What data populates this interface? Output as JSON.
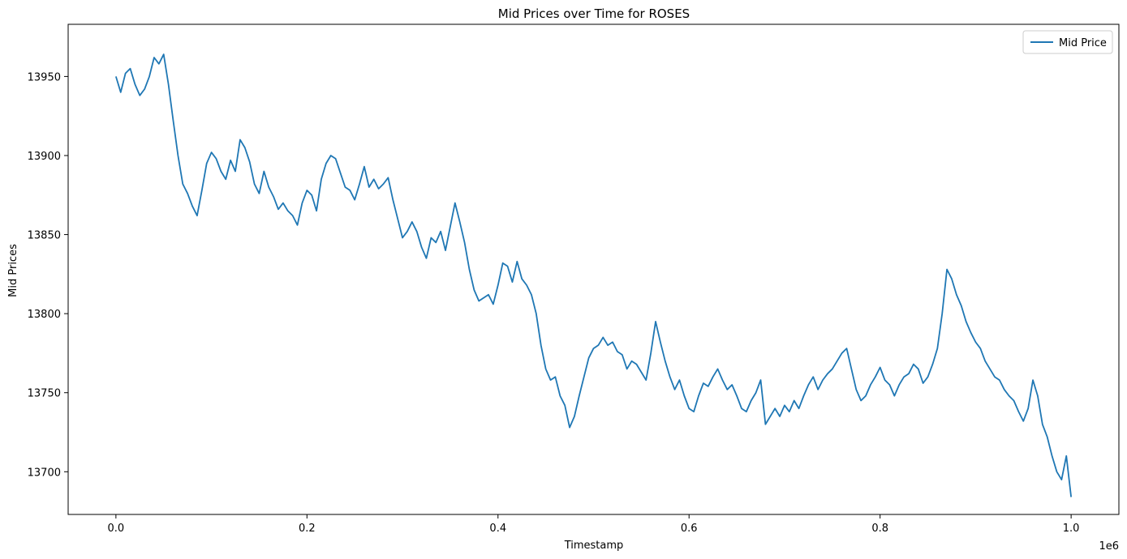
{
  "chart_data": {
    "type": "line",
    "title": "Mid Prices over Time for ROSES",
    "xlabel": "Timestamp",
    "ylabel": "Mid Prices",
    "x_offset_label": "1e6",
    "xlim": [
      -0.05,
      1.05
    ],
    "ylim": [
      13673,
      13983
    ],
    "x_ticks": [
      0.0,
      0.2,
      0.4,
      0.6,
      0.8,
      1.0
    ],
    "x_tick_labels": [
      "0.0",
      "0.2",
      "0.4",
      "0.6",
      "0.8",
      "1.0"
    ],
    "y_ticks": [
      13700,
      13750,
      13800,
      13850,
      13900,
      13950
    ],
    "y_tick_labels": [
      "13700",
      "13750",
      "13800",
      "13850",
      "13900",
      "13950"
    ],
    "grid": false,
    "legend": {
      "position": "top-right",
      "entries": [
        "Mid Price"
      ]
    },
    "colors": {
      "series": "#1f77b4"
    },
    "series": [
      {
        "name": "Mid Price",
        "x": [
          0.0,
          0.005,
          0.01,
          0.015,
          0.02,
          0.025,
          0.03,
          0.035,
          0.04,
          0.045,
          0.05,
          0.055,
          0.06,
          0.065,
          0.07,
          0.075,
          0.08,
          0.085,
          0.09,
          0.095,
          0.1,
          0.105,
          0.11,
          0.115,
          0.12,
          0.125,
          0.13,
          0.135,
          0.14,
          0.145,
          0.15,
          0.155,
          0.16,
          0.165,
          0.17,
          0.175,
          0.18,
          0.185,
          0.19,
          0.195,
          0.2,
          0.205,
          0.21,
          0.215,
          0.22,
          0.225,
          0.23,
          0.235,
          0.24,
          0.245,
          0.25,
          0.255,
          0.26,
          0.265,
          0.27,
          0.275,
          0.28,
          0.285,
          0.29,
          0.295,
          0.3,
          0.305,
          0.31,
          0.315,
          0.32,
          0.325,
          0.33,
          0.335,
          0.34,
          0.345,
          0.35,
          0.355,
          0.36,
          0.365,
          0.37,
          0.375,
          0.38,
          0.385,
          0.39,
          0.395,
          0.4,
          0.405,
          0.41,
          0.415,
          0.42,
          0.425,
          0.43,
          0.435,
          0.44,
          0.445,
          0.45,
          0.455,
          0.46,
          0.465,
          0.47,
          0.475,
          0.48,
          0.485,
          0.49,
          0.495,
          0.5,
          0.505,
          0.51,
          0.515,
          0.52,
          0.525,
          0.53,
          0.535,
          0.54,
          0.545,
          0.55,
          0.555,
          0.56,
          0.565,
          0.57,
          0.575,
          0.58,
          0.585,
          0.59,
          0.595,
          0.6,
          0.605,
          0.61,
          0.615,
          0.62,
          0.625,
          0.63,
          0.635,
          0.64,
          0.645,
          0.65,
          0.655,
          0.66,
          0.665,
          0.67,
          0.675,
          0.68,
          0.685,
          0.69,
          0.695,
          0.7,
          0.705,
          0.71,
          0.715,
          0.72,
          0.725,
          0.73,
          0.735,
          0.74,
          0.745,
          0.75,
          0.755,
          0.76,
          0.765,
          0.77,
          0.775,
          0.78,
          0.785,
          0.79,
          0.795,
          0.8,
          0.805,
          0.81,
          0.815,
          0.82,
          0.825,
          0.83,
          0.835,
          0.84,
          0.845,
          0.85,
          0.855,
          0.86,
          0.865,
          0.87,
          0.875,
          0.88,
          0.885,
          0.89,
          0.895,
          0.9,
          0.905,
          0.91,
          0.915,
          0.92,
          0.925,
          0.93,
          0.935,
          0.94,
          0.945,
          0.95,
          0.955,
          0.96,
          0.965,
          0.97,
          0.975,
          0.98,
          0.985,
          0.99,
          0.995,
          1.0
        ],
        "values": [
          13950,
          13940,
          13952,
          13955,
          13945,
          13938,
          13942,
          13950,
          13962,
          13958,
          13964,
          13945,
          13922,
          13900,
          13882,
          13876,
          13868,
          13862,
          13878,
          13895,
          13902,
          13898,
          13890,
          13885,
          13897,
          13890,
          13910,
          13905,
          13896,
          13882,
          13876,
          13890,
          13880,
          13874,
          13866,
          13870,
          13865,
          13862,
          13856,
          13870,
          13878,
          13875,
          13865,
          13885,
          13895,
          13900,
          13898,
          13889,
          13880,
          13878,
          13872,
          13882,
          13893,
          13880,
          13885,
          13879,
          13882,
          13886,
          13872,
          13860,
          13848,
          13852,
          13858,
          13852,
          13842,
          13835,
          13848,
          13845,
          13852,
          13840,
          13855,
          13870,
          13858,
          13845,
          13828,
          13815,
          13808,
          13810,
          13812,
          13806,
          13818,
          13832,
          13830,
          13820,
          13833,
          13822,
          13818,
          13812,
          13800,
          13780,
          13765,
          13758,
          13760,
          13748,
          13742,
          13728,
          13735,
          13748,
          13760,
          13772,
          13778,
          13780,
          13785,
          13780,
          13782,
          13776,
          13774,
          13765,
          13770,
          13768,
          13763,
          13758,
          13775,
          13795,
          13782,
          13770,
          13760,
          13752,
          13758,
          13748,
          13740,
          13738,
          13748,
          13756,
          13754,
          13760,
          13765,
          13758,
          13752,
          13755,
          13748,
          13740,
          13738,
          13745,
          13750,
          13758,
          13730,
          13735,
          13740,
          13735,
          13742,
          13738,
          13745,
          13740,
          13748,
          13755,
          13760,
          13752,
          13758,
          13762,
          13765,
          13770,
          13775,
          13778,
          13765,
          13752,
          13745,
          13748,
          13755,
          13760,
          13766,
          13758,
          13755,
          13748,
          13755,
          13760,
          13762,
          13768,
          13765,
          13756,
          13760,
          13768,
          13778,
          13800,
          13828,
          13822,
          13812,
          13805,
          13795,
          13788,
          13782,
          13778,
          13770,
          13765,
          13760,
          13758,
          13752,
          13748,
          13745,
          13738,
          13732,
          13740,
          13758,
          13748,
          13730,
          13722,
          13710,
          13700,
          13695,
          13710,
          13684
        ]
      }
    ]
  }
}
